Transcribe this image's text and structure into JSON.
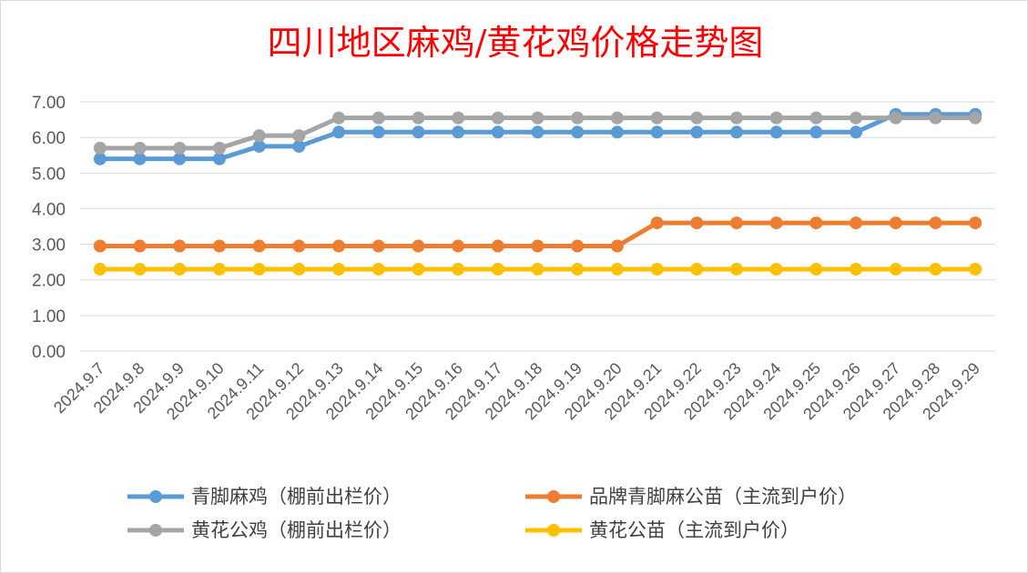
{
  "chart_data": {
    "type": "line",
    "title": "四川地区麻鸡/黄花鸡价格走势图",
    "xlabel": "",
    "ylabel": "",
    "ylim": [
      0,
      7
    ],
    "yticks": [
      "0.00",
      "1.00",
      "2.00",
      "3.00",
      "4.00",
      "5.00",
      "6.00",
      "7.00"
    ],
    "grid": true,
    "legend_position": "bottom",
    "x": [
      "2024.9.7",
      "2024.9.8",
      "2024.9.9",
      "2024.9.10",
      "2024.9.11",
      "2024.9.12",
      "2024.9.13",
      "2024.9.14",
      "2024.9.15",
      "2024.9.16",
      "2024.9.17",
      "2024.9.18",
      "2024.9.19",
      "2024.9.20",
      "2024.9.21",
      "2024.9.22",
      "2024.9.23",
      "2024.9.24",
      "2024.9.25",
      "2024.9.26",
      "2024.9.27",
      "2024.9.28",
      "2024.9.29"
    ],
    "series": [
      {
        "name": "青脚麻鸡（棚前出栏价）",
        "color": "#5b9bd5",
        "values": [
          5.4,
          5.4,
          5.4,
          5.4,
          5.75,
          5.75,
          6.15,
          6.15,
          6.15,
          6.15,
          6.15,
          6.15,
          6.15,
          6.15,
          6.15,
          6.15,
          6.15,
          6.15,
          6.15,
          6.15,
          6.65,
          6.65,
          6.65
        ]
      },
      {
        "name": "品牌青脚麻公苗（主流到户价）",
        "color": "#ed7d31",
        "values": [
          2.95,
          2.95,
          2.95,
          2.95,
          2.95,
          2.95,
          2.95,
          2.95,
          2.95,
          2.95,
          2.95,
          2.95,
          2.95,
          2.95,
          3.6,
          3.6,
          3.6,
          3.6,
          3.6,
          3.6,
          3.6,
          3.6,
          3.6
        ]
      },
      {
        "name": "黄花公鸡（棚前出栏价）",
        "color": "#a5a5a5",
        "values": [
          5.7,
          5.7,
          5.7,
          5.7,
          6.05,
          6.05,
          6.55,
          6.55,
          6.55,
          6.55,
          6.55,
          6.55,
          6.55,
          6.55,
          6.55,
          6.55,
          6.55,
          6.55,
          6.55,
          6.55,
          6.55,
          6.55,
          6.55
        ]
      },
      {
        "name": "黄花公苗（主流到户价）",
        "color": "#ffc000",
        "values": [
          2.3,
          2.3,
          2.3,
          2.3,
          2.3,
          2.3,
          2.3,
          2.3,
          2.3,
          2.3,
          2.3,
          2.3,
          2.3,
          2.3,
          2.3,
          2.3,
          2.3,
          2.3,
          2.3,
          2.3,
          2.3,
          2.3,
          2.3
        ]
      }
    ]
  }
}
